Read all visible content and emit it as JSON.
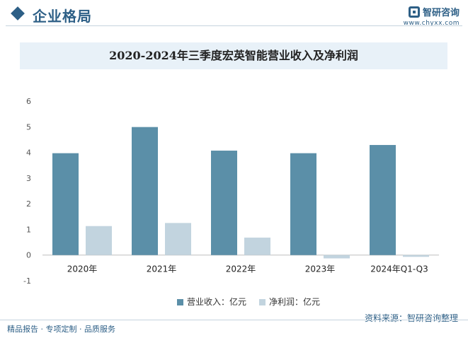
{
  "header": {
    "section_title": "企业格局",
    "brand_name": "智研咨询",
    "brand_url": "www.chyxx.com"
  },
  "chart_data": {
    "type": "bar",
    "title": "2020-2024年三季度宏英智能营业收入及净利润",
    "categories": [
      "2020年",
      "2021年",
      "2022年",
      "2023年",
      "2024年Q1-Q3"
    ],
    "series": [
      {
        "name": "营业收入：亿元",
        "color": "#5b8fa8",
        "values": [
          3.97,
          4.99,
          4.07,
          3.97,
          4.29
        ]
      },
      {
        "name": "净利润：亿元",
        "color": "#c2d4df",
        "values": [
          1.13,
          1.25,
          0.68,
          -0.13,
          -0.07
        ]
      }
    ],
    "ylim": [
      -1,
      6
    ],
    "yticks": [
      -1,
      0,
      1,
      2,
      3,
      4,
      5,
      6
    ],
    "legend_position": "bottom"
  },
  "footer": {
    "source": "资料来源：智研咨询整理",
    "services": "精品报告 · 专项定制 · 品质服务"
  }
}
